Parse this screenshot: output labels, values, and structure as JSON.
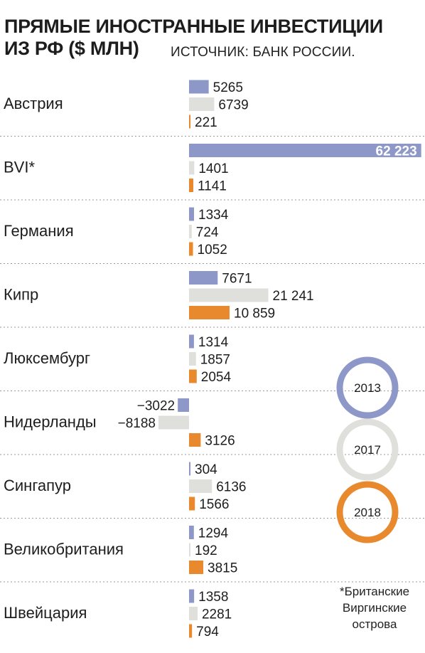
{
  "title": {
    "line1": "ПРЯМЫЕ ИНОСТРАННЫЕ ИНВЕСТИЦИИ",
    "line2": "ИЗ РФ ($ МЛН)",
    "source": "ИСТОЧНИК: БАНК РОССИИ."
  },
  "footnote": {
    "line1": "*Британские",
    "line2": "Виргинские",
    "line3": "острова"
  },
  "legend": [
    {
      "label": "2013",
      "color": "#8d98c8"
    },
    {
      "label": "2017",
      "color": "#dfdfdc"
    },
    {
      "label": "2018",
      "color": "#e8892e"
    }
  ],
  "chart_data": {
    "type": "bar",
    "orientation": "horizontal",
    "title": "ПРЯМЫЕ ИНОСТРАННЫЕ ИНВЕСТИЦИИ ИЗ РФ ($ МЛН)",
    "categories": [
      "Австрия",
      "BVI*",
      "Германия",
      "Кипр",
      "Люксембург",
      "Нидерланды",
      "Сингапур",
      "Великобритания",
      "Швейцария"
    ],
    "series": [
      {
        "name": "2013",
        "color": "#8d98c8",
        "values": [
          5265,
          62223,
          1334,
          7671,
          1314,
          -3022,
          304,
          1294,
          1358
        ],
        "labels": [
          "5265",
          "62 223",
          "1334",
          "7671",
          "1314",
          "−3022",
          "304",
          "1294",
          "1358"
        ]
      },
      {
        "name": "2017",
        "color": "#dfdfdc",
        "values": [
          6739,
          1401,
          724,
          21241,
          1857,
          -8188,
          6136,
          192,
          2281
        ],
        "labels": [
          "6739",
          "1401",
          "724",
          "21 241",
          "1857",
          "−8188",
          "6136",
          "192",
          "2281"
        ]
      },
      {
        "name": "2018",
        "color": "#e8892e",
        "values": [
          221,
          1141,
          1052,
          10859,
          2054,
          3126,
          1566,
          3815,
          794
        ],
        "labels": [
          "221",
          "1141",
          "1052",
          "10 859",
          "2054",
          "3126",
          "1566",
          "3815",
          "794"
        ]
      }
    ],
    "legend_position": "right",
    "grid": false
  }
}
